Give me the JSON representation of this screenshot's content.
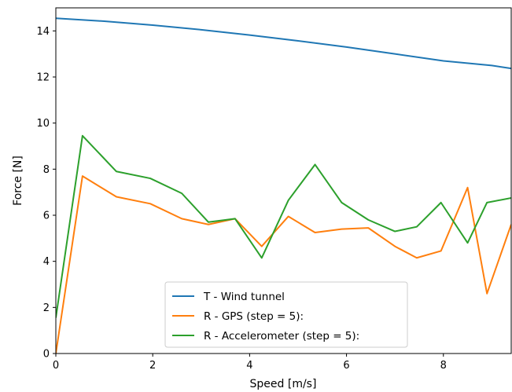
{
  "chart_data": {
    "type": "line",
    "title": "",
    "xlabel": "Speed [m/s]",
    "ylabel": "Force [N]",
    "xlim": [
      0,
      9.4
    ],
    "ylim": [
      0,
      15
    ],
    "xticks": [
      0,
      2,
      4,
      6,
      8
    ],
    "yticks": [
      0,
      2,
      4,
      6,
      8,
      10,
      12,
      14
    ],
    "grid": false,
    "legend_position": "lower-center",
    "series": [
      {
        "name": "T - Wind tunnel",
        "color": "#1f77b4",
        "x": [
          0,
          1,
          2,
          3,
          4,
          5,
          6,
          7,
          8,
          9,
          9.4
        ],
        "y": [
          14.55,
          14.42,
          14.25,
          14.05,
          13.82,
          13.57,
          13.3,
          13.0,
          12.7,
          12.5,
          12.37
        ]
      },
      {
        "name": "R - GPS (step = 5):",
        "color": "#ff7f0e",
        "x": [
          0,
          0.55,
          1.25,
          1.95,
          2.6,
          3.15,
          3.7,
          4.25,
          4.8,
          5.35,
          5.9,
          6.45,
          7.0,
          7.45,
          7.95,
          8.5,
          8.9,
          9.4
        ],
        "y": [
          0.0,
          7.7,
          6.8,
          6.5,
          5.85,
          5.6,
          5.85,
          4.65,
          5.95,
          5.25,
          5.4,
          5.45,
          4.65,
          4.15,
          4.45,
          7.2,
          2.6,
          5.6
        ]
      },
      {
        "name": "R - Accelerometer (step = 5):",
        "color": "#2ca02c",
        "x": [
          0,
          0.55,
          1.25,
          1.95,
          2.6,
          3.15,
          3.7,
          4.25,
          4.8,
          5.35,
          5.9,
          6.45,
          7.0,
          7.45,
          7.95,
          8.5,
          8.9,
          9.4
        ],
        "y": [
          1.55,
          9.45,
          7.9,
          7.6,
          6.95,
          5.7,
          5.85,
          4.15,
          6.65,
          8.2,
          6.55,
          5.8,
          5.3,
          5.5,
          6.55,
          4.8,
          6.55,
          6.75
        ]
      }
    ]
  }
}
